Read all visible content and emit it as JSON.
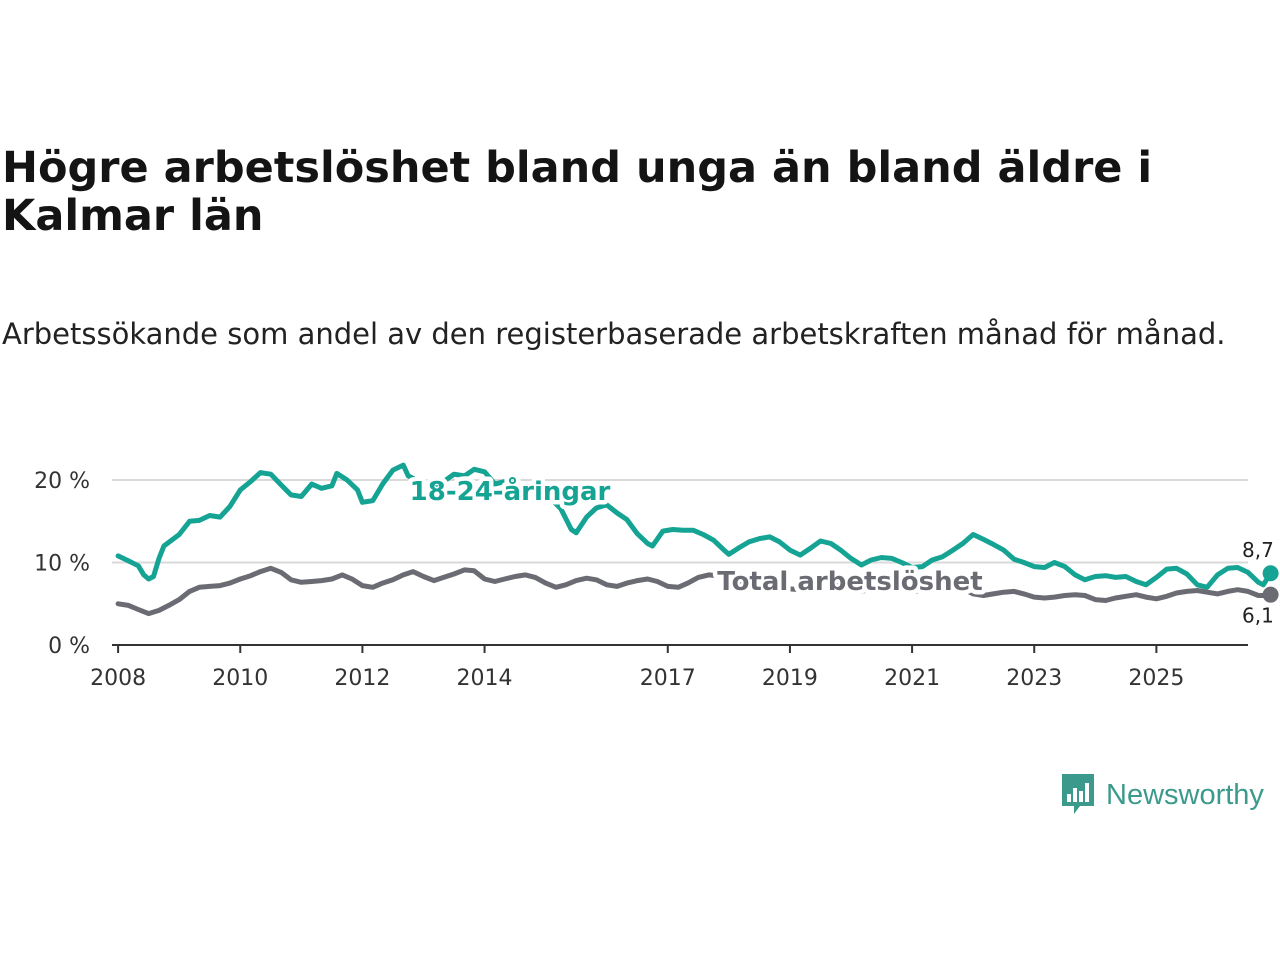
{
  "title": "Högre arbetslöshet bland unga än bland äldre i Kalmar län",
  "subtitle": "Arbetssökande som andel av den registerbaserade arbetskraften månad för månad.",
  "brand": {
    "name": "Newsworthy",
    "icon": "newsworthy-bar-chart-icon",
    "color": "#3c9a8c"
  },
  "chart_data": {
    "type": "line",
    "title": "Högre arbetslöshet bland unga än bland äldre i Kalmar län",
    "xlabel": "",
    "ylabel": "",
    "xlim": [
      2007.9,
      2026.5
    ],
    "ylim": [
      0,
      20
    ],
    "grid": true,
    "y_ticks": [
      {
        "value": 0,
        "label": "0 %"
      },
      {
        "value": 10,
        "label": "10 %"
      },
      {
        "value": 20,
        "label": "20 %"
      }
    ],
    "x_ticks": [
      {
        "value": 2008,
        "label": "2008"
      },
      {
        "value": 2010,
        "label": "2010"
      },
      {
        "value": 2012,
        "label": "2012"
      },
      {
        "value": 2014,
        "label": "2014"
      },
      {
        "value": 2017,
        "label": "2017"
      },
      {
        "value": 2019,
        "label": "2019"
      },
      {
        "value": 2021,
        "label": "2021"
      },
      {
        "value": 2023,
        "label": "2023"
      },
      {
        "value": 2025,
        "label": "2025"
      }
    ],
    "series": [
      {
        "name": "18-24-åringar",
        "color": "#15a394",
        "end_label": "8,7 %",
        "points": [
          [
            2008.0,
            10.8
          ],
          [
            2008.17,
            10.2
          ],
          [
            2008.33,
            9.6
          ],
          [
            2008.42,
            8.5
          ],
          [
            2008.5,
            8.0
          ],
          [
            2008.58,
            8.3
          ],
          [
            2008.67,
            10.5
          ],
          [
            2008.75,
            12.0
          ],
          [
            2009.0,
            13.4
          ],
          [
            2009.17,
            15.0
          ],
          [
            2009.33,
            15.1
          ],
          [
            2009.5,
            15.7
          ],
          [
            2009.67,
            15.5
          ],
          [
            2009.83,
            16.8
          ],
          [
            2010.0,
            18.8
          ],
          [
            2010.17,
            19.8
          ],
          [
            2010.33,
            20.9
          ],
          [
            2010.5,
            20.7
          ],
          [
            2010.67,
            19.4
          ],
          [
            2010.83,
            18.2
          ],
          [
            2011.0,
            18.0
          ],
          [
            2011.17,
            19.5
          ],
          [
            2011.33,
            19.0
          ],
          [
            2011.5,
            19.3
          ],
          [
            2011.58,
            20.8
          ],
          [
            2011.75,
            20.0
          ],
          [
            2011.92,
            18.8
          ],
          [
            2012.0,
            17.3
          ],
          [
            2012.17,
            17.5
          ],
          [
            2012.33,
            19.5
          ],
          [
            2012.5,
            21.2
          ],
          [
            2012.67,
            21.8
          ],
          [
            2012.75,
            20.5
          ],
          [
            2012.83,
            20.2
          ],
          [
            2013.0,
            19.5
          ],
          [
            2013.17,
            19.3
          ],
          [
            2013.33,
            19.8
          ],
          [
            2013.5,
            20.7
          ],
          [
            2013.67,
            20.5
          ],
          [
            2013.83,
            21.3
          ],
          [
            2014.0,
            21.0
          ],
          [
            2014.17,
            19.5
          ],
          [
            2014.33,
            19.8
          ],
          [
            2014.5,
            17.4
          ],
          [
            2014.67,
            18.8
          ],
          [
            2014.83,
            19.6
          ],
          [
            2015.0,
            19.0
          ],
          [
            2015.08,
            17.8
          ],
          [
            2015.25,
            16.5
          ],
          [
            2015.42,
            14.0
          ],
          [
            2015.5,
            13.6
          ],
          [
            2015.67,
            15.5
          ],
          [
            2015.83,
            16.6
          ],
          [
            2016.0,
            17.0
          ],
          [
            2016.17,
            16.0
          ],
          [
            2016.33,
            15.2
          ],
          [
            2016.5,
            13.5
          ],
          [
            2016.67,
            12.3
          ],
          [
            2016.75,
            12.0
          ],
          [
            2016.92,
            13.8
          ],
          [
            2017.08,
            14.0
          ],
          [
            2017.25,
            13.9
          ],
          [
            2017.42,
            13.9
          ],
          [
            2017.58,
            13.4
          ],
          [
            2017.75,
            12.7
          ],
          [
            2017.92,
            11.5
          ],
          [
            2018.0,
            11.0
          ],
          [
            2018.17,
            11.8
          ],
          [
            2018.33,
            12.5
          ],
          [
            2018.5,
            12.9
          ],
          [
            2018.67,
            13.1
          ],
          [
            2018.83,
            12.5
          ],
          [
            2019.0,
            11.5
          ],
          [
            2019.17,
            10.9
          ],
          [
            2019.33,
            11.7
          ],
          [
            2019.5,
            12.6
          ],
          [
            2019.67,
            12.3
          ],
          [
            2019.83,
            11.5
          ],
          [
            2020.0,
            10.5
          ],
          [
            2020.17,
            9.7
          ],
          [
            2020.33,
            10.3
          ],
          [
            2020.5,
            10.6
          ],
          [
            2020.67,
            10.5
          ],
          [
            2020.83,
            10.0
          ],
          [
            2021.0,
            9.4
          ],
          [
            2021.17,
            9.5
          ],
          [
            2021.33,
            10.3
          ],
          [
            2021.5,
            10.7
          ],
          [
            2021.67,
            11.5
          ],
          [
            2021.83,
            12.3
          ],
          [
            2022.0,
            13.4
          ],
          [
            2022.17,
            12.8
          ],
          [
            2022.33,
            12.2
          ],
          [
            2022.5,
            11.5
          ],
          [
            2022.67,
            10.4
          ],
          [
            2022.83,
            10.0
          ],
          [
            2023.0,
            9.5
          ],
          [
            2023.17,
            9.4
          ],
          [
            2023.33,
            10.0
          ],
          [
            2023.5,
            9.5
          ],
          [
            2023.67,
            8.5
          ],
          [
            2023.83,
            7.9
          ],
          [
            2024.0,
            8.3
          ],
          [
            2024.17,
            8.4
          ],
          [
            2024.33,
            8.2
          ],
          [
            2024.5,
            8.3
          ],
          [
            2024.67,
            7.7
          ],
          [
            2024.83,
            7.3
          ],
          [
            2025.0,
            8.2
          ],
          [
            2025.17,
            9.2
          ],
          [
            2025.33,
            9.3
          ],
          [
            2025.5,
            8.6
          ],
          [
            2025.67,
            7.3
          ],
          [
            2025.83,
            7.0
          ],
          [
            2026.0,
            8.5
          ],
          [
            2026.17,
            9.3
          ],
          [
            2026.33,
            9.4
          ],
          [
            2026.5,
            8.8
          ],
          [
            2026.67,
            7.6
          ],
          [
            2026.75,
            7.3
          ],
          [
            2026.87,
            8.7
          ]
        ]
      },
      {
        "name": "Total arbetslöshet",
        "color": "#6b6b73",
        "end_label": "6,1 %",
        "points": [
          [
            2008.0,
            5.0
          ],
          [
            2008.17,
            4.8
          ],
          [
            2008.33,
            4.3
          ],
          [
            2008.5,
            3.8
          ],
          [
            2008.67,
            4.2
          ],
          [
            2008.83,
            4.8
          ],
          [
            2009.0,
            5.5
          ],
          [
            2009.17,
            6.5
          ],
          [
            2009.33,
            7.0
          ],
          [
            2009.5,
            7.1
          ],
          [
            2009.67,
            7.2
          ],
          [
            2009.83,
            7.5
          ],
          [
            2010.0,
            8.0
          ],
          [
            2010.17,
            8.4
          ],
          [
            2010.33,
            8.9
          ],
          [
            2010.5,
            9.3
          ],
          [
            2010.67,
            8.8
          ],
          [
            2010.83,
            7.9
          ],
          [
            2011.0,
            7.6
          ],
          [
            2011.17,
            7.7
          ],
          [
            2011.33,
            7.8
          ],
          [
            2011.5,
            8.0
          ],
          [
            2011.67,
            8.5
          ],
          [
            2011.83,
            8.0
          ],
          [
            2012.0,
            7.2
          ],
          [
            2012.17,
            7.0
          ],
          [
            2012.33,
            7.5
          ],
          [
            2012.5,
            7.9
          ],
          [
            2012.67,
            8.5
          ],
          [
            2012.83,
            8.9
          ],
          [
            2013.0,
            8.3
          ],
          [
            2013.17,
            7.8
          ],
          [
            2013.33,
            8.2
          ],
          [
            2013.5,
            8.6
          ],
          [
            2013.67,
            9.1
          ],
          [
            2013.83,
            9.0
          ],
          [
            2014.0,
            8.0
          ],
          [
            2014.17,
            7.7
          ],
          [
            2014.33,
            8.0
          ],
          [
            2014.5,
            8.3
          ],
          [
            2014.67,
            8.5
          ],
          [
            2014.83,
            8.2
          ],
          [
            2015.0,
            7.5
          ],
          [
            2015.17,
            7.0
          ],
          [
            2015.33,
            7.3
          ],
          [
            2015.5,
            7.8
          ],
          [
            2015.67,
            8.1
          ],
          [
            2015.83,
            7.9
          ],
          [
            2016.0,
            7.3
          ],
          [
            2016.17,
            7.1
          ],
          [
            2016.33,
            7.5
          ],
          [
            2016.5,
            7.8
          ],
          [
            2016.67,
            8.0
          ],
          [
            2016.83,
            7.7
          ],
          [
            2017.0,
            7.1
          ],
          [
            2017.17,
            7.0
          ],
          [
            2017.33,
            7.5
          ],
          [
            2017.5,
            8.2
          ],
          [
            2017.67,
            8.5
          ],
          [
            2017.83,
            8.4
          ],
          [
            2018.0,
            7.6
          ],
          [
            2018.17,
            7.4
          ],
          [
            2018.33,
            7.5
          ],
          [
            2018.5,
            7.7
          ],
          [
            2018.67,
            7.9
          ],
          [
            2018.83,
            7.5
          ],
          [
            2019.0,
            6.8
          ],
          [
            2019.17,
            6.7
          ],
          [
            2019.33,
            6.9
          ],
          [
            2019.5,
            7.2
          ],
          [
            2019.67,
            7.4
          ],
          [
            2019.83,
            7.1
          ],
          [
            2020.0,
            6.6
          ],
          [
            2020.17,
            6.5
          ],
          [
            2020.33,
            6.8
          ],
          [
            2020.5,
            7.2
          ],
          [
            2020.67,
            7.3
          ],
          [
            2020.83,
            7.0
          ],
          [
            2021.0,
            6.6
          ],
          [
            2021.17,
            6.5
          ],
          [
            2021.33,
            6.7
          ],
          [
            2021.5,
            6.9
          ],
          [
            2021.67,
            7.0
          ],
          [
            2021.83,
            6.8
          ],
          [
            2022.0,
            6.2
          ],
          [
            2022.17,
            6.0
          ],
          [
            2022.33,
            6.2
          ],
          [
            2022.5,
            6.4
          ],
          [
            2022.67,
            6.5
          ],
          [
            2022.83,
            6.2
          ],
          [
            2023.0,
            5.8
          ],
          [
            2023.17,
            5.7
          ],
          [
            2023.33,
            5.8
          ],
          [
            2023.5,
            6.0
          ],
          [
            2023.67,
            6.1
          ],
          [
            2023.83,
            6.0
          ],
          [
            2024.0,
            5.5
          ],
          [
            2024.17,
            5.4
          ],
          [
            2024.33,
            5.7
          ],
          [
            2024.5,
            5.9
          ],
          [
            2024.67,
            6.1
          ],
          [
            2024.83,
            5.8
          ],
          [
            2025.0,
            5.6
          ],
          [
            2025.17,
            5.9
          ],
          [
            2025.33,
            6.3
          ],
          [
            2025.5,
            6.5
          ],
          [
            2025.67,
            6.6
          ],
          [
            2025.83,
            6.4
          ],
          [
            2026.0,
            6.2
          ],
          [
            2026.17,
            6.5
          ],
          [
            2026.33,
            6.7
          ],
          [
            2026.5,
            6.5
          ],
          [
            2026.67,
            6.0
          ],
          [
            2026.75,
            6.0
          ],
          [
            2026.87,
            6.1
          ]
        ]
      }
    ]
  }
}
